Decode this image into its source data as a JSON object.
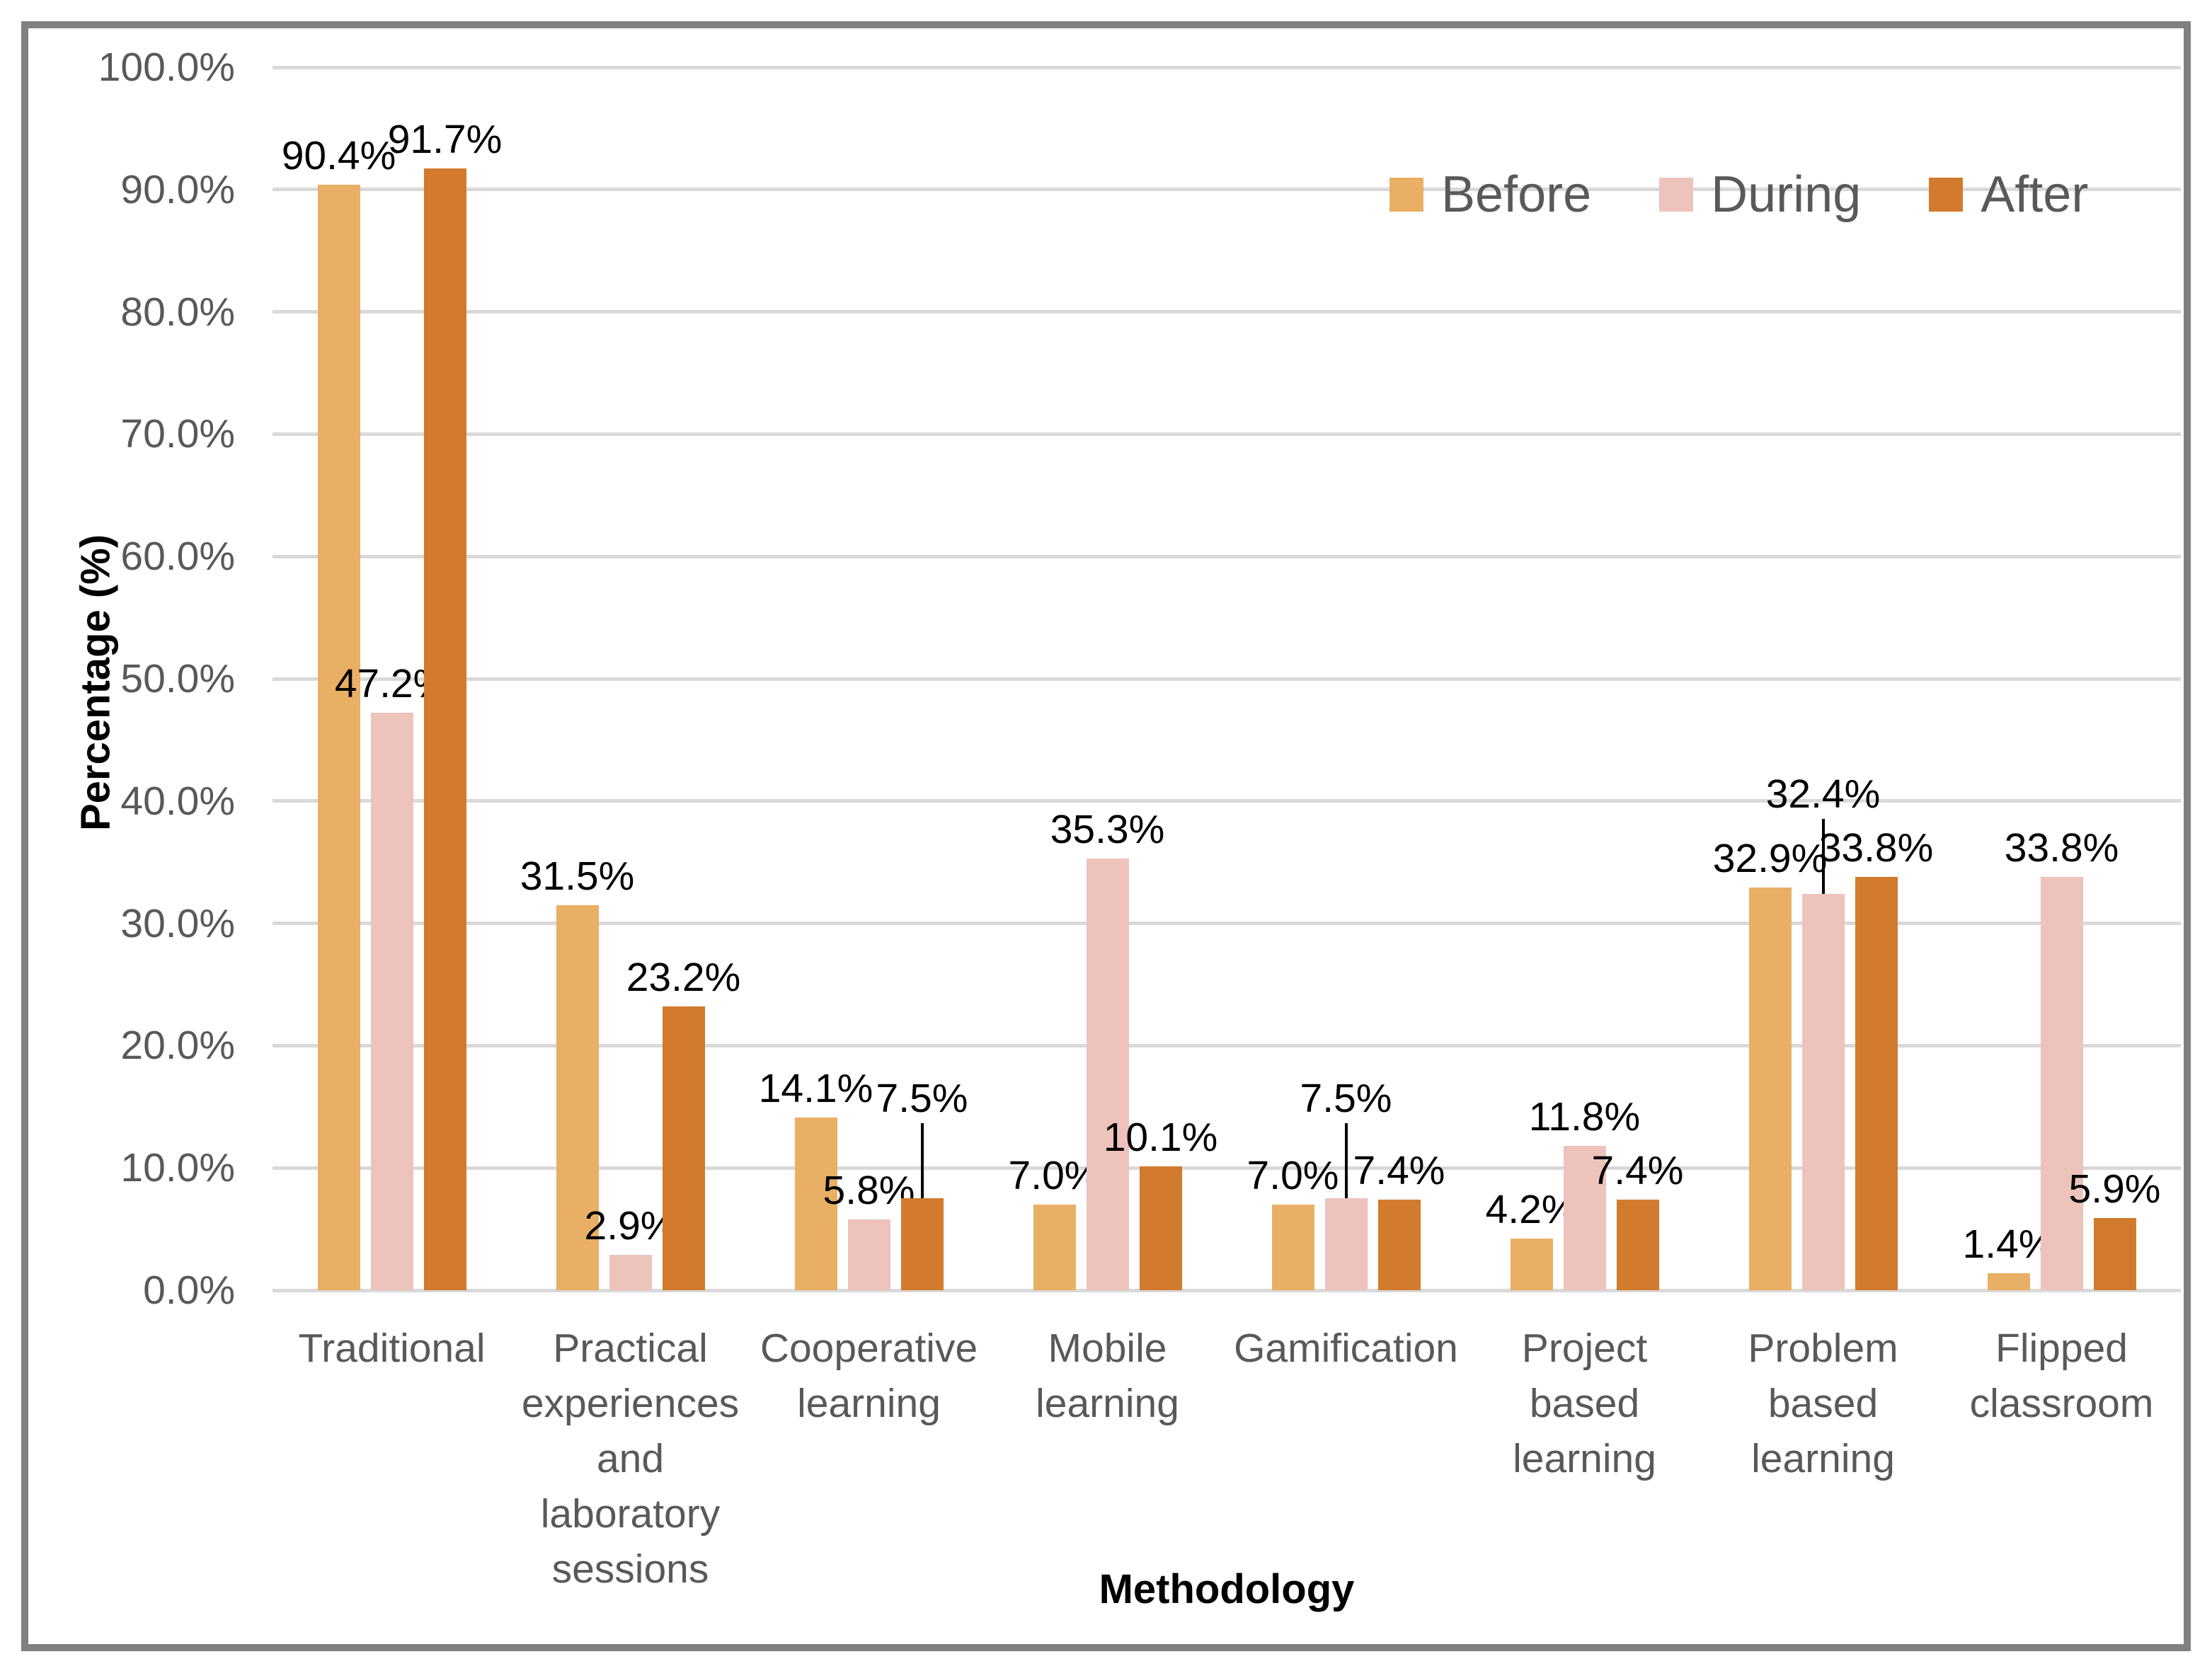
{
  "chart_data": {
    "type": "bar",
    "title": "",
    "xlabel": "Methodology",
    "ylabel": "Percentage (%)",
    "ylim": [
      0,
      100
    ],
    "y_ticks": [
      "0.0%",
      "10.0%",
      "20.0%",
      "30.0%",
      "40.0%",
      "50.0%",
      "60.0%",
      "70.0%",
      "80.0%",
      "90.0%",
      "100.0%"
    ],
    "grid": "horizontal",
    "legend_position": "top-right-inside",
    "categories": [
      "Traditional",
      "Practical\nexperiences\nand\nlaboratory\nsessions",
      "Cooperative\nlearning",
      "Mobile\nlearning",
      "Gamification",
      "Project\nbased\nlearning",
      "Problem\nbased\nlearning",
      "Flipped\nclassroom"
    ],
    "series": [
      {
        "name": "Before",
        "color": "#E9AF64",
        "values": [
          90.4,
          31.5,
          14.1,
          7.0,
          7.0,
          4.2,
          32.9,
          1.4
        ],
        "labels": [
          "90.4%",
          "31.5%",
          "14.1%",
          "7.0%",
          "7.0%",
          "4.2%",
          "32.9%",
          "1.4%"
        ]
      },
      {
        "name": "During",
        "color": "#EDC3BC",
        "values": [
          47.2,
          2.9,
          5.8,
          35.3,
          7.5,
          11.8,
          32.4,
          33.8
        ],
        "labels": [
          "47.2%",
          "2.9%",
          "5.8%",
          "35.3%",
          "7.5%",
          "11.8%",
          "32.4%",
          "33.8%"
        ]
      },
      {
        "name": "After",
        "color": "#D27A2D",
        "values": [
          91.7,
          23.2,
          7.5,
          10.1,
          7.4,
          7.4,
          33.8,
          5.9
        ],
        "labels": [
          "91.7%",
          "23.2%",
          "7.5%",
          "10.1%",
          "7.4%",
          "7.4%",
          "33.8%",
          "5.9%"
        ]
      }
    ],
    "label_leader_lines": [
      {
        "series": "After",
        "category_index": 2
      },
      {
        "series": "During",
        "category_index": 4
      },
      {
        "series": "During",
        "category_index": 6
      }
    ],
    "colors": {
      "grid": "#D9D9D9",
      "axis_text": "#595959",
      "data_label": "#000000",
      "frame_border": "#808080"
    }
  }
}
